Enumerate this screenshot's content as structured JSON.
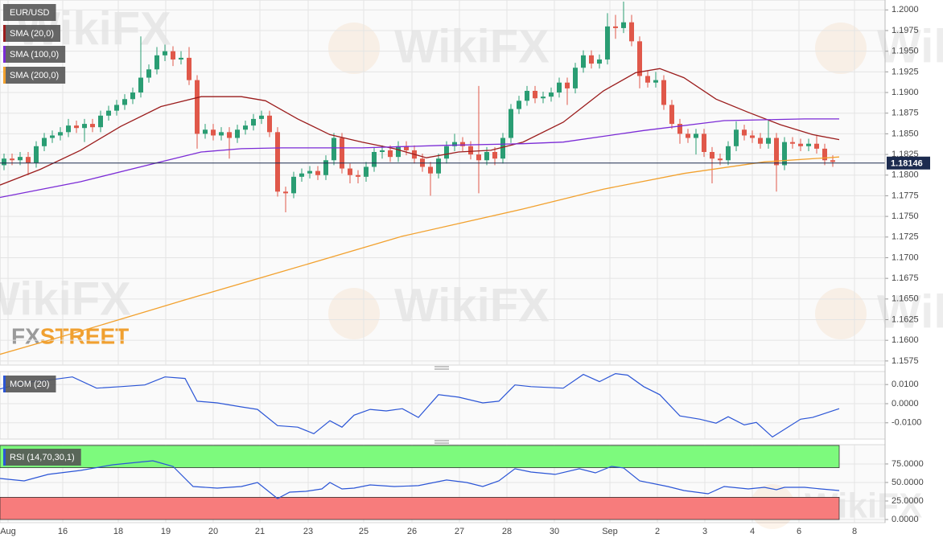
{
  "chart_data": [
    {
      "type": "candlestick",
      "title": "EUR/USD",
      "up_color": "#2a9d73",
      "down_color": "#e0584a",
      "xlim": [
        -0.5,
        109.5
      ],
      "ylim": [
        1.157,
        1.2012
      ],
      "yticks": [
        {
          "value": 1.2,
          "label": "1.2000"
        },
        {
          "value": 1.1975,
          "label": "1.1975"
        },
        {
          "value": 1.195,
          "label": "1.1950"
        },
        {
          "value": 1.1925,
          "label": "1.1925"
        },
        {
          "value": 1.19,
          "label": "1.1900"
        },
        {
          "value": 1.1875,
          "label": "1.1875"
        },
        {
          "value": 1.185,
          "label": "1.1850"
        },
        {
          "value": 1.1825,
          "label": "1.1825"
        },
        {
          "value": 1.18,
          "label": "1.1800"
        },
        {
          "value": 1.1775,
          "label": "1.1775"
        },
        {
          "value": 1.175,
          "label": "1.1750"
        },
        {
          "value": 1.1725,
          "label": "1.1725"
        },
        {
          "value": 1.17,
          "label": "1.1700"
        },
        {
          "value": 1.1675,
          "label": "1.1675"
        },
        {
          "value": 1.165,
          "label": "1.1650"
        },
        {
          "value": 1.1625,
          "label": "1.1625"
        },
        {
          "value": 1.16,
          "label": "1.1600"
        },
        {
          "value": 1.1575,
          "label": "1.1575"
        }
      ],
      "grid": true,
      "open": [
        1.1812,
        1.182,
        1.1818,
        1.1822,
        1.1815,
        1.1835,
        1.1845,
        1.1848,
        1.1852,
        1.186,
        1.1857,
        1.1862,
        1.1858,
        1.1872,
        1.1878,
        1.1885,
        1.1892,
        1.19,
        1.1918,
        1.1928,
        1.1945,
        1.195,
        1.194,
        1.1942,
        1.1915,
        1.185,
        1.1855,
        1.1848,
        1.1852,
        1.1845,
        1.1855,
        1.186,
        1.1868,
        1.1872,
        1.1852,
        1.178,
        1.1778,
        1.1798,
        1.1802,
        1.1805,
        1.18,
        1.1818,
        1.1845,
        1.1808,
        1.18,
        1.1798,
        1.181,
        1.1828,
        1.183,
        1.1822,
        1.1835,
        1.183,
        1.182,
        1.181,
        1.1802,
        1.182,
        1.1835,
        1.184,
        1.1835,
        1.1825,
        1.1818,
        1.1828,
        1.182,
        1.1845,
        1.188,
        1.189,
        1.1902,
        1.1893,
        1.1895,
        1.19,
        1.1912,
        1.1905,
        1.193,
        1.1945,
        1.1935,
        1.194,
        1.198,
        1.1978,
        1.1985,
        1.1962,
        1.192,
        1.1912,
        1.1915,
        1.1885,
        1.1862,
        1.185,
        1.1845,
        1.185,
        1.1828,
        1.182,
        1.1818,
        1.1835,
        1.1855,
        1.1848,
        1.1845,
        1.1838,
        1.1845,
        1.1812,
        1.184,
        1.1838,
        1.1835,
        1.1838,
        1.1832,
        1.1818
      ],
      "high": [
        1.1826,
        1.1826,
        1.1828,
        1.1828,
        1.1841,
        1.1851,
        1.1854,
        1.1858,
        1.1868,
        1.1866,
        1.1868,
        1.1868,
        1.1878,
        1.1884,
        1.1891,
        1.1898,
        1.1906,
        1.1968,
        1.1934,
        1.1955,
        1.1958,
        1.1956,
        1.195,
        1.1955,
        1.1921,
        1.1862,
        1.1862,
        1.1858,
        1.1858,
        1.1861,
        1.1866,
        1.1874,
        1.1878,
        1.1878,
        1.1858,
        1.1786,
        1.1804,
        1.1808,
        1.1811,
        1.1811,
        1.1824,
        1.1851,
        1.1851,
        1.1814,
        1.1806,
        1.1816,
        1.1834,
        1.1836,
        1.1836,
        1.1841,
        1.1841,
        1.1836,
        1.1826,
        1.1816,
        1.1826,
        1.1841,
        1.185,
        1.1846,
        1.1841,
        1.1908,
        1.1834,
        1.1834,
        1.1851,
        1.1886,
        1.1896,
        1.1908,
        1.1908,
        1.1901,
        1.1906,
        1.1918,
        1.1918,
        1.1936,
        1.1951,
        1.1951,
        1.1946,
        1.1996,
        1.1994,
        1.201,
        1.1994,
        1.1968,
        1.1926,
        1.1925,
        1.1921,
        1.1891,
        1.1868,
        1.1856,
        1.1856,
        1.1856,
        1.1834,
        1.1826,
        1.1841,
        1.1865,
        1.1861,
        1.1854,
        1.1851,
        1.1866,
        1.1851,
        1.1846,
        1.1846,
        1.1844,
        1.1844,
        1.1848,
        1.1838,
        1.1824
      ],
      "low": [
        1.1806,
        1.1812,
        1.1812,
        1.18,
        1.1809,
        1.1829,
        1.1839,
        1.1842,
        1.1846,
        1.1851,
        1.184,
        1.1852,
        1.1852,
        1.1866,
        1.1872,
        1.1879,
        1.1886,
        1.1894,
        1.1912,
        1.1922,
        1.1938,
        1.1932,
        1.1934,
        1.1909,
        1.1832,
        1.1844,
        1.1842,
        1.1842,
        1.182,
        1.1839,
        1.1849,
        1.1854,
        1.1862,
        1.1846,
        1.1774,
        1.1755,
        1.1772,
        1.1792,
        1.1796,
        1.1794,
        1.1794,
        1.1812,
        1.1802,
        1.179,
        1.179,
        1.1792,
        1.1804,
        1.182,
        1.1816,
        1.1816,
        1.1824,
        1.1814,
        1.1804,
        1.1775,
        1.1796,
        1.1814,
        1.1829,
        1.1829,
        1.1819,
        1.1778,
        1.1812,
        1.1812,
        1.1814,
        1.1839,
        1.1874,
        1.1884,
        1.1887,
        1.1887,
        1.1889,
        1.1894,
        1.1885,
        1.1899,
        1.1924,
        1.1929,
        1.1929,
        1.1934,
        1.1965,
        1.1972,
        1.1956,
        1.1905,
        1.1906,
        1.1906,
        1.1879,
        1.1856,
        1.1838,
        1.1839,
        1.1825,
        1.1822,
        1.179,
        1.1812,
        1.1812,
        1.1829,
        1.1842,
        1.1839,
        1.1832,
        1.1832,
        1.178,
        1.1806,
        1.1832,
        1.1829,
        1.1829,
        1.1826,
        1.1812,
        1.181
      ],
      "close": [
        1.182,
        1.1818,
        1.1822,
        1.1815,
        1.1835,
        1.1845,
        1.1848,
        1.1852,
        1.186,
        1.1857,
        1.1862,
        1.1858,
        1.1872,
        1.1878,
        1.1885,
        1.1892,
        1.19,
        1.1918,
        1.1928,
        1.1945,
        1.195,
        1.194,
        1.1942,
        1.1915,
        1.185,
        1.1855,
        1.1848,
        1.1852,
        1.1845,
        1.1855,
        1.186,
        1.1868,
        1.1872,
        1.1852,
        1.178,
        1.1778,
        1.1798,
        1.1802,
        1.1805,
        1.18,
        1.1818,
        1.1845,
        1.1808,
        1.18,
        1.1798,
        1.181,
        1.1828,
        1.183,
        1.1822,
        1.1835,
        1.183,
        1.182,
        1.181,
        1.1802,
        1.182,
        1.1835,
        1.184,
        1.1835,
        1.1825,
        1.1818,
        1.1828,
        1.182,
        1.1845,
        1.188,
        1.189,
        1.1902,
        1.1893,
        1.1895,
        1.19,
        1.1912,
        1.1905,
        1.193,
        1.1945,
        1.1935,
        1.194,
        1.198,
        1.1978,
        1.1985,
        1.1962,
        1.192,
        1.1912,
        1.1915,
        1.1885,
        1.1862,
        1.185,
        1.1845,
        1.185,
        1.1828,
        1.182,
        1.1818,
        1.1835,
        1.1855,
        1.1848,
        1.1845,
        1.1838,
        1.1845,
        1.1812,
        1.184,
        1.1838,
        1.1835,
        1.1838,
        1.1832,
        1.1818,
        1.1816
      ],
      "series": [
        {
          "name": "SMA (20,0)",
          "color": "#9b1c1c",
          "x": [
            -0.5,
            4.5,
            9.5,
            14.5,
            19.5,
            24.5,
            29.5,
            32.5,
            36.5,
            40.5,
            44.5,
            48.5,
            52.5,
            56.5,
            60.5,
            64.5,
            69.5,
            74.5,
            78.5,
            81.5,
            84.5,
            88.5,
            92.5,
            96.5,
            100.5,
            103.8
          ],
          "values": [
            1.1788,
            1.1807,
            1.183,
            1.1859,
            1.1883,
            1.1895,
            1.1895,
            1.189,
            1.1868,
            1.1849,
            1.184,
            1.1832,
            1.1821,
            1.1828,
            1.183,
            1.184,
            1.1864,
            1.1902,
            1.1924,
            1.1929,
            1.1918,
            1.1892,
            1.1876,
            1.1861,
            1.1849,
            1.1843
          ]
        },
        {
          "name": "SMA (100,0)",
          "color": "#7b2bd6",
          "x": [
            -0.5,
            9.5,
            19.5,
            24.5,
            29.5,
            34.5,
            44.5,
            54.5,
            64.5,
            69.5,
            79.5,
            89.5,
            99.5,
            103.8
          ],
          "values": [
            1.1773,
            1.1792,
            1.1816,
            1.1828,
            1.1832,
            1.1833,
            1.1833,
            1.1836,
            1.1838,
            1.184,
            1.1854,
            1.1866,
            1.1868,
            1.1868
          ]
        },
        {
          "name": "SMA (200,0)",
          "color": "#f2a12e",
          "x": [
            -0.5,
            9.5,
            22.5,
            34.5,
            49.5,
            64.5,
            74.5,
            84.5,
            94.5,
            103.8
          ],
          "values": [
            1.1583,
            1.1611,
            1.1649,
            1.1683,
            1.1726,
            1.1759,
            1.1783,
            1.1802,
            1.1816,
            1.1822
          ]
        }
      ],
      "last_price": 1.18146,
      "last_price_color": "#1c2b4f",
      "watermark": "WikiFX",
      "logo": [
        "FX",
        "STREET"
      ]
    },
    {
      "type": "line",
      "title": "MOM (20)",
      "color": "#2b55d6",
      "xlim": [
        -0.5,
        109.5
      ],
      "ylim": [
        -0.0185,
        0.0168
      ],
      "yticks": [
        {
          "value": 0.01,
          "label": "0.0100"
        },
        {
          "value": 0,
          "label": "0.0000"
        },
        {
          "value": -0.01,
          "label": "-0.0100"
        }
      ],
      "grid": true,
      "x": [
        -0.5,
        2.5,
        5.5,
        8.5,
        11.5,
        14.5,
        17.5,
        20,
        22.5,
        24,
        26.5,
        29.5,
        31.5,
        34,
        36.5,
        38.5,
        40.5,
        42,
        43.5,
        45.5,
        47.5,
        49.5,
        51.5,
        54,
        56.5,
        59.5,
        61.5,
        63.5,
        65.5,
        69.5,
        72,
        74,
        76,
        77.5,
        79.5,
        81.5,
        84,
        86.5,
        88.5,
        90,
        92,
        93.5,
        95.5,
        99,
        100.5,
        103.8
      ],
      "values": [
        0.0077,
        0.0111,
        0.0123,
        0.014,
        0.0081,
        0.0089,
        0.0098,
        0.014,
        0.0132,
        0.0013,
        0.0004,
        -0.0017,
        -0.003,
        -0.0115,
        -0.0123,
        -0.0157,
        -0.0089,
        -0.0123,
        -0.006,
        -0.003,
        -0.0038,
        -0.0026,
        -0.0072,
        0.0047,
        0.0034,
        0.0004,
        0.0013,
        0.0098,
        0.0089,
        0.0081,
        0.0153,
        0.0115,
        0.0157,
        0.0149,
        0.0089,
        0.0047,
        -0.0064,
        -0.0081,
        -0.0102,
        -0.0068,
        -0.0111,
        -0.0098,
        -0.0174,
        -0.0081,
        -0.0072,
        -0.0026
      ]
    },
    {
      "type": "line",
      "title": "RSI (14,70,30,1)",
      "color": "#2b55d6",
      "xlim": [
        -0.5,
        109.5
      ],
      "ylim": [
        -4.3,
        101
      ],
      "yticks": [
        {
          "value": 75,
          "label": "75.0000"
        },
        {
          "value": 50,
          "label": "50.0000"
        },
        {
          "value": 25,
          "label": "25.0000"
        },
        {
          "value": 0,
          "label": "0.0000"
        }
      ],
      "grid": true,
      "bands": [
        {
          "from": 70,
          "to": 100,
          "color": "#7dfa7d"
        },
        {
          "from": 0,
          "to": 30,
          "color": "#f77c7c"
        }
      ],
      "xticks": [
        {
          "value": 0.5,
          "label": "Aug"
        },
        {
          "value": 7.3,
          "label": "16"
        },
        {
          "value": 14.2,
          "label": "18"
        },
        {
          "value": 20.1,
          "label": "19"
        },
        {
          "value": 26,
          "label": "20"
        },
        {
          "value": 31.8,
          "label": "21"
        },
        {
          "value": 37.8,
          "label": "23"
        },
        {
          "value": 44.7,
          "label": "25"
        },
        {
          "value": 50.7,
          "label": "26"
        },
        {
          "value": 56.6,
          "label": "27"
        },
        {
          "value": 62.5,
          "label": "28"
        },
        {
          "value": 68.4,
          "label": "30"
        },
        {
          "value": 75.3,
          "label": "Sep"
        },
        {
          "value": 81.2,
          "label": "2"
        },
        {
          "value": 87.1,
          "label": "3"
        },
        {
          "value": 93,
          "label": "4"
        },
        {
          "value": 98.8,
          "label": "6"
        },
        {
          "value": 105.7,
          "label": "8"
        }
      ],
      "x": [
        -0.5,
        2.5,
        5.5,
        9.5,
        13.5,
        18.5,
        21,
        23.5,
        26.5,
        29.5,
        31.5,
        34,
        35.5,
        37.5,
        39.5,
        40.5,
        42,
        43.5,
        45.5,
        48.5,
        51.5,
        55,
        57.5,
        59.5,
        61.5,
        63.5,
        65.5,
        68.5,
        71.5,
        73.5,
        75.5,
        77,
        79,
        82.5,
        84.5,
        87.5,
        89.5,
        92.5,
        94.5,
        96,
        97,
        99.5,
        101.5,
        103.8
      ],
      "values": [
        55.4,
        52.2,
        60.9,
        66.3,
        73.9,
        79.3,
        71.7,
        44.6,
        42.4,
        44.6,
        50,
        28.3,
        37,
        38,
        41.3,
        50,
        41.3,
        42.4,
        46.7,
        44.6,
        45.7,
        53.3,
        50,
        44.6,
        52.2,
        68.5,
        64.1,
        60.9,
        68.5,
        63,
        71.7,
        69.6,
        52.2,
        44.6,
        39.1,
        34.8,
        44.6,
        41.3,
        43.5,
        40.2,
        43.5,
        43.5,
        41.3,
        39.1
      ]
    }
  ]
}
